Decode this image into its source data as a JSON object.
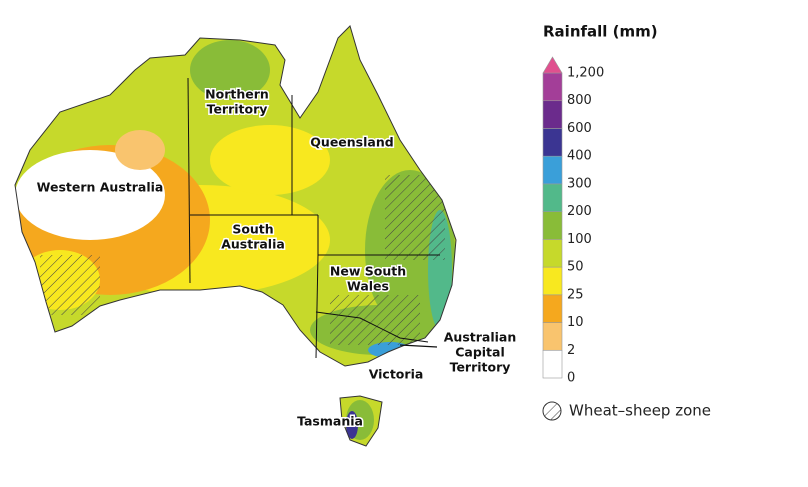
{
  "map": {
    "labels": [
      {
        "lines": [
          "Northern",
          "Territory"
        ]
      },
      {
        "lines": [
          "Queensland"
        ]
      },
      {
        "lines": [
          "Western Australia"
        ]
      },
      {
        "lines": [
          "South",
          "Australia"
        ]
      },
      {
        "lines": [
          "New South",
          "Wales"
        ]
      },
      {
        "lines": [
          "Australian",
          "Capital",
          "Territory"
        ]
      },
      {
        "lines": [
          "Victoria"
        ]
      },
      {
        "lines": [
          "Tasmania"
        ]
      }
    ]
  },
  "legend": {
    "title": "Rainfall (mm)",
    "bins": [
      {
        "label": "0",
        "color": "#ffffff"
      },
      {
        "label": "2",
        "color": "#f9c46e"
      },
      {
        "label": "10",
        "color": "#f5a81e"
      },
      {
        "label": "25",
        "color": "#f8e81f"
      },
      {
        "label": "50",
        "color": "#c6d92b"
      },
      {
        "label": "100",
        "color": "#89bc38"
      },
      {
        "label": "200",
        "color": "#52b98a"
      },
      {
        "label": "300",
        "color": "#3a9fd9"
      },
      {
        "label": "400",
        "color": "#3b3592"
      },
      {
        "label": "600",
        "color": "#6b2b8c"
      },
      {
        "label": "800",
        "color": "#a33e98"
      },
      {
        "label": "1,200",
        "color": "#e0508f"
      }
    ],
    "zone": "Wheat–sheep zone"
  }
}
